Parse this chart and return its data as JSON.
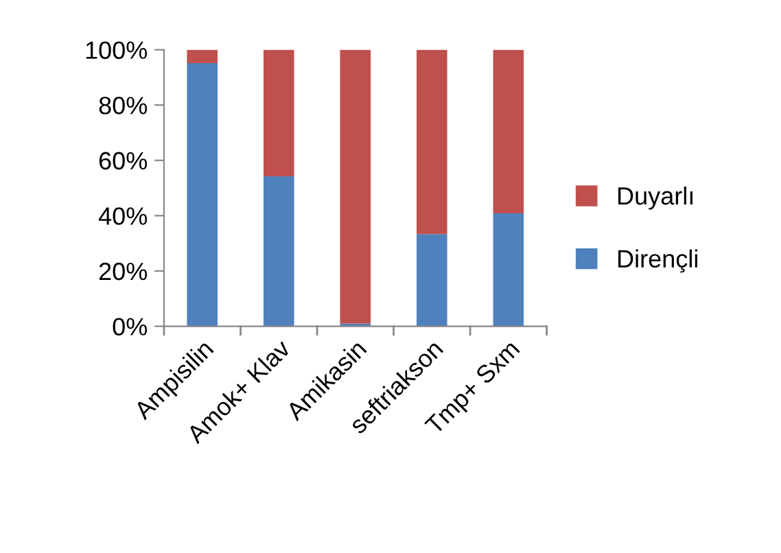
{
  "chart_data": {
    "type": "bar",
    "stacked": true,
    "categories": [
      "Ampisilin",
      "Amok+ Klav",
      "Amikasin",
      "seftriakson",
      "Tmp+ Sxm"
    ],
    "series": [
      {
        "name": "Dirençli",
        "color": "#4f81bd",
        "values": [
          95.2,
          54.2,
          1.0,
          33.3,
          40.8
        ]
      },
      {
        "name": "Duyarlı",
        "color": "#c0504d",
        "values": [
          4.8,
          45.8,
          99.0,
          66.7,
          59.2
        ]
      }
    ],
    "ylim": [
      0,
      100
    ],
    "yticks": [
      {
        "value": 0,
        "label": "0%"
      },
      {
        "value": 20,
        "label": "20%"
      },
      {
        "value": 40,
        "label": "40%"
      },
      {
        "value": 60,
        "label": "60%"
      },
      {
        "value": 80,
        "label": "80%"
      },
      {
        "value": 100,
        "label": "100%"
      }
    ],
    "legend": "right",
    "grid": false
  }
}
